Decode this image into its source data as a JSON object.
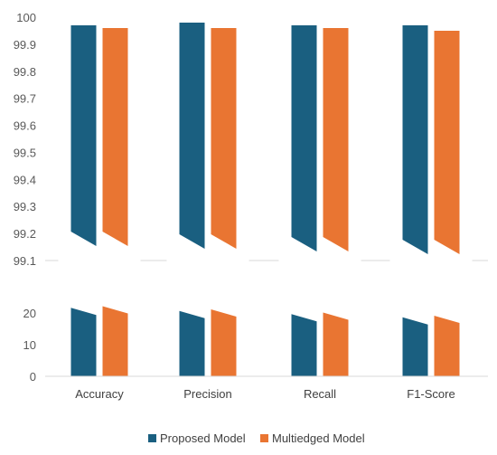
{
  "chart_data": {
    "type": "bar",
    "broken_axis": true,
    "categories": [
      "Accuracy",
      "Precision",
      "Recall",
      "F1-Score"
    ],
    "series": [
      {
        "name": "Proposed Model",
        "color": "#1a5f80",
        "values": [
          99.97,
          99.98,
          99.97,
          99.97
        ]
      },
      {
        "name": "Multiedged Model",
        "color": "#e97532",
        "values": [
          99.96,
          99.96,
          99.96,
          99.95
        ]
      }
    ],
    "upper_axis": {
      "ylim": [
        99.1,
        100
      ],
      "ticks": [
        "99.1",
        "99.2",
        "99.3",
        "99.4",
        "99.5",
        "99.6",
        "99.7",
        "99.8",
        "99.9",
        "100"
      ]
    },
    "lower_axis": {
      "ylim": [
        0,
        20
      ],
      "ticks": [
        "0",
        "10",
        "20"
      ]
    },
    "grid": false,
    "legend_position": "bottom"
  }
}
